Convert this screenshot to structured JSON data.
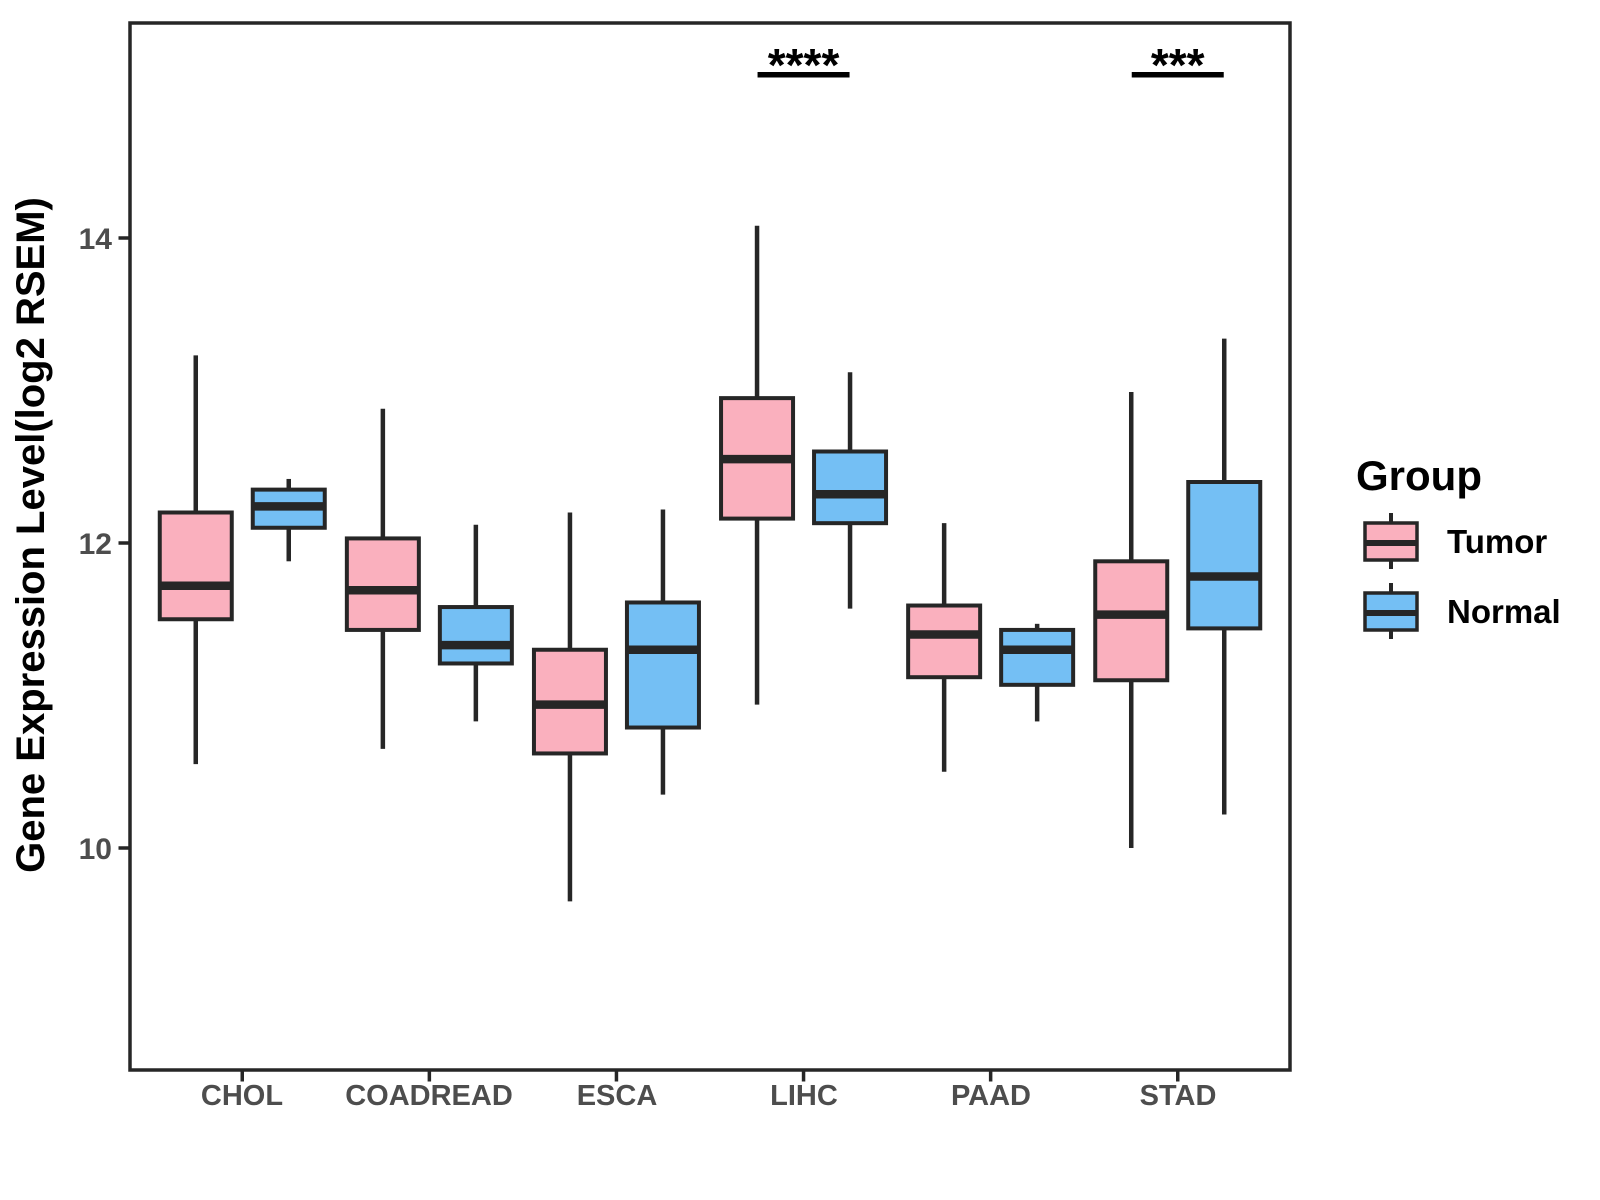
{
  "chart_data": {
    "type": "boxplot",
    "title": "",
    "xlabel": "",
    "ylabel": "Gene Expression Level(log2 RSEM)",
    "categories": [
      "CHOL",
      "COADREAD",
      "ESCA",
      "LIHC",
      "PAAD",
      "STAD"
    ],
    "yticks": [
      10,
      12,
      14
    ],
    "ylim": [
      8.5,
      15.4
    ],
    "grid": false,
    "legend_position": "right",
    "series": [
      {
        "name": "Tumor",
        "color": "#FAB0BE",
        "boxes": [
          {
            "category": "CHOL",
            "min": 10.55,
            "q1": 11.5,
            "median": 11.72,
            "q3": 12.2,
            "max": 13.23
          },
          {
            "category": "COADREAD",
            "min": 10.65,
            "q1": 11.43,
            "median": 11.69,
            "q3": 12.03,
            "max": 12.88
          },
          {
            "category": "ESCA",
            "min": 9.65,
            "q1": 10.62,
            "median": 10.94,
            "q3": 11.3,
            "max": 12.2
          },
          {
            "category": "LIHC",
            "min": 10.94,
            "q1": 12.16,
            "median": 12.55,
            "q3": 12.95,
            "max": 14.08
          },
          {
            "category": "PAAD",
            "min": 10.5,
            "q1": 11.12,
            "median": 11.4,
            "q3": 11.59,
            "max": 12.13
          },
          {
            "category": "STAD",
            "min": 10.0,
            "q1": 11.1,
            "median": 11.53,
            "q3": 11.88,
            "max": 12.99
          }
        ]
      },
      {
        "name": "Normal",
        "color": "#74BFF4",
        "boxes": [
          {
            "category": "CHOL",
            "min": 11.88,
            "q1": 12.1,
            "median": 12.24,
            "q3": 12.35,
            "max": 12.42
          },
          {
            "category": "COADREAD",
            "min": 10.83,
            "q1": 11.21,
            "median": 11.33,
            "q3": 11.58,
            "max": 12.12
          },
          {
            "category": "ESCA",
            "min": 10.35,
            "q1": 10.79,
            "median": 11.3,
            "q3": 11.61,
            "max": 12.22
          },
          {
            "category": "LIHC",
            "min": 11.57,
            "q1": 12.13,
            "median": 12.32,
            "q3": 12.6,
            "max": 13.12
          },
          {
            "category": "PAAD",
            "min": 10.83,
            "q1": 11.07,
            "median": 11.3,
            "q3": 11.43,
            "max": 11.47
          },
          {
            "category": "STAD",
            "min": 10.22,
            "q1": 11.44,
            "median": 11.78,
            "q3": 12.4,
            "max": 13.34
          }
        ]
      }
    ],
    "annotations": [
      {
        "category": "LIHC",
        "label": "****"
      },
      {
        "category": "STAD",
        "label": "***"
      }
    ]
  },
  "legend": {
    "title": "Group",
    "items": [
      {
        "label": "Tumor",
        "color": "#FAB0BE"
      },
      {
        "label": "Normal",
        "color": "#74BFF4"
      }
    ]
  },
  "colors": {
    "box_outline": "#262626",
    "axis": "#262626",
    "annotation": "#000000",
    "tick_label": "#4D4D4D",
    "background": "#FFFFFF"
  }
}
